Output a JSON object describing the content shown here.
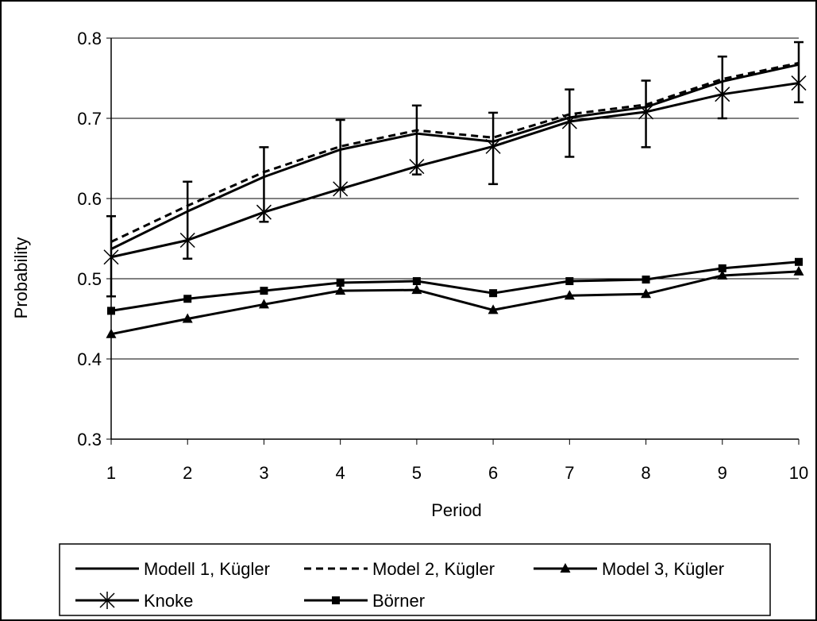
{
  "chart_data": {
    "type": "line",
    "title": "",
    "xlabel": "Period",
    "ylabel": "Probability",
    "x": [
      1,
      2,
      3,
      4,
      5,
      6,
      7,
      8,
      9,
      10
    ],
    "xticks": [
      "1",
      "2",
      "3",
      "4",
      "5",
      "6",
      "7",
      "8",
      "9",
      "10"
    ],
    "ylim": [
      0.3,
      0.8
    ],
    "yticks": [
      "0.3",
      "0.4",
      "0.5",
      "0.6",
      "0.7",
      "0.8"
    ],
    "grid": "horizontal",
    "legend_position": "bottom",
    "series": [
      {
        "name": "Modell 1, Kügler",
        "style": "solid",
        "marker": "none",
        "values": [
          0.537,
          0.584,
          0.627,
          0.661,
          0.681,
          0.671,
          0.701,
          0.714,
          0.746,
          0.767
        ],
        "error_up": [
          0.578,
          0.621,
          0.664,
          0.698,
          0.716,
          0.707,
          0.736,
          0.747,
          0.777,
          0.795
        ],
        "error_down": [
          0.478,
          0.525,
          0.571,
          0.611,
          0.63,
          0.618,
          0.652,
          0.664,
          0.7,
          0.72
        ]
      },
      {
        "name": "Model 2, Kügler",
        "style": "dashed",
        "marker": "none",
        "values": [
          0.546,
          0.591,
          0.633,
          0.665,
          0.685,
          0.676,
          0.705,
          0.717,
          0.749,
          0.769
        ]
      },
      {
        "name": "Model 3, Kügler",
        "style": "solid",
        "marker": "triangle",
        "values": [
          0.431,
          0.45,
          0.468,
          0.485,
          0.486,
          0.461,
          0.479,
          0.481,
          0.504,
          0.509
        ]
      },
      {
        "name": "Knoke",
        "style": "solid",
        "marker": "star",
        "values": [
          0.527,
          0.548,
          0.583,
          0.612,
          0.64,
          0.665,
          0.696,
          0.708,
          0.73,
          0.744
        ]
      },
      {
        "name": "Börner",
        "style": "solid",
        "marker": "square",
        "values": [
          0.46,
          0.475,
          0.485,
          0.495,
          0.497,
          0.482,
          0.497,
          0.499,
          0.513,
          0.521
        ]
      }
    ]
  }
}
